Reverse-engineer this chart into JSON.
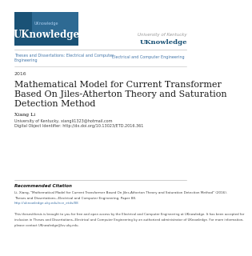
{
  "bg_color": "#ffffff",
  "logo_box_color": "#1a5276",
  "logo_text": "UKnowledge",
  "univ_text_line1": "University of Kentucky",
  "univ_text_line2": "UKnowledge",
  "nav_line1_left": "Theses and Dissertations: Electrical and Computer",
  "nav_line2_left": "Engineering",
  "nav_line1_right": "Electrical and Computer Engineering",
  "year": "2016",
  "title_line1": "Mathematical Model for Current Transformer",
  "title_line2": "Based On Jiles-Atherton Theory and Saturation",
  "title_line3": "Detection Method",
  "author": "Xiang Li",
  "affil1": "University of Kentucky, xiangli1323@hotmail.com",
  "affil2": "Digital Object Identifier: http://dx.doi.org/10.13023/ETD.2016.361",
  "rec_citation_title": "Recommended Citation",
  "rec_citation_line1": "Li, Xiang, \"Mathematical Model for Current Transformer Based On Jiles-Atherton Theory and Saturation Detection Method\" (2016).",
  "rec_citation_line2": "Theses and Dissertations--Electrical and Computer Engineering. Paper 88.",
  "rec_citation_line3": "http://uknowledge.uky.edu/ece_etds/88",
  "footer_line1": "This theses/thesis is brought to you for free and open access by the Electrical and Computer Engineering at UKnowledge. It has been accepted for",
  "footer_line2": "inclusion in Theses and Dissertations--Electrical and Computer Engineering by an authorized administrator of UKnowledge. For more information,",
  "footer_line3": "please contact UKnowledge@lsv.uky.edu.",
  "separator_color": "#bbbbbb",
  "nav_color": "#4477aa",
  "title_color": "#1a1a1a",
  "small_text_color": "#444444",
  "univ_label_color": "#999999",
  "univ_bold_color": "#1a5276",
  "footer_link_color": "#4477aa",
  "logo_accent_color": "#5599cc"
}
